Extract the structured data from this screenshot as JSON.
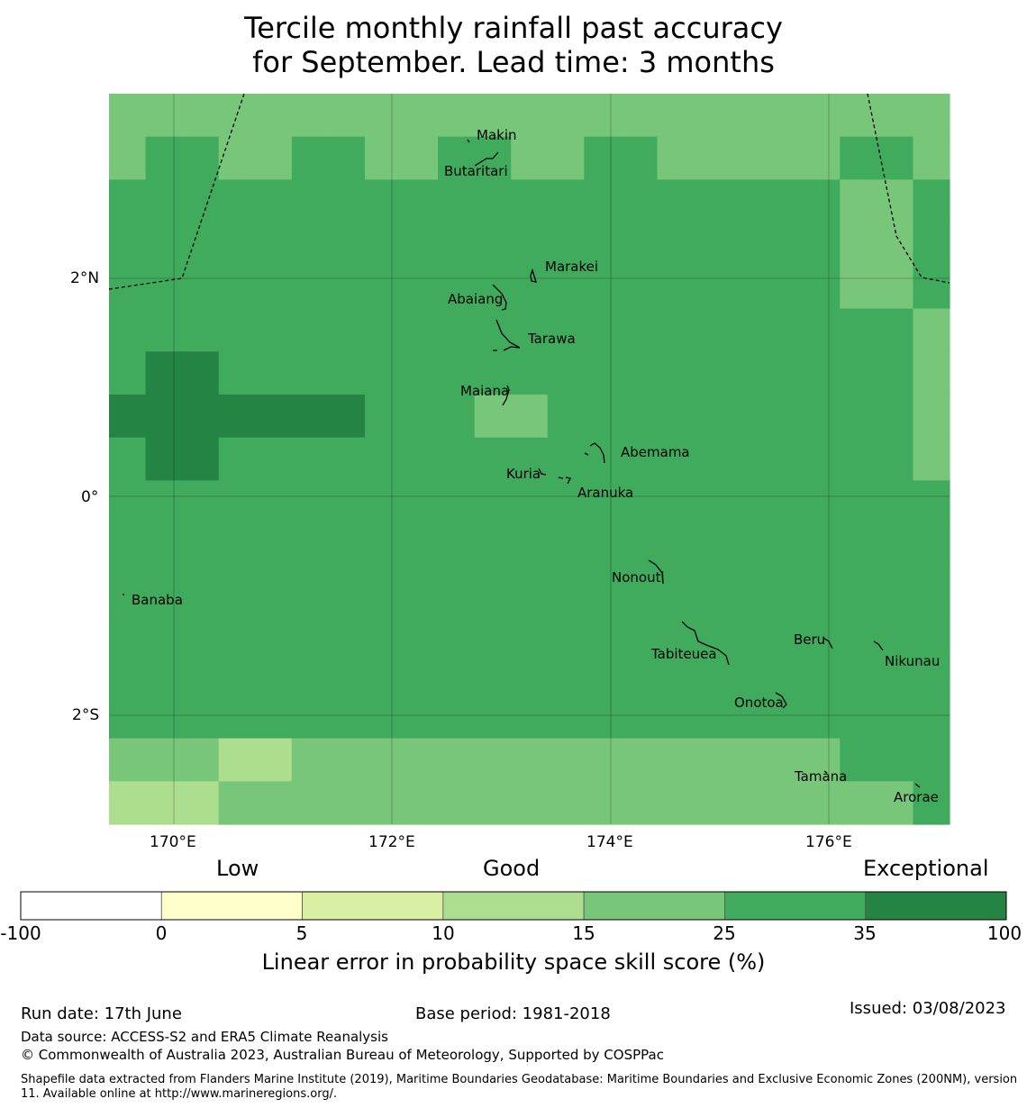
{
  "title_line1": "Tercile monthly rainfall past accuracy",
  "title_line2": "for September. Lead time: 3 months",
  "map": {
    "lon_ticks": [
      "170°E",
      "172°E",
      "174°E",
      "176°E"
    ],
    "lat_ticks": [
      "2°N",
      "0°",
      "2°S"
    ],
    "islands": {
      "makin": "Makin",
      "butaritari": "Butaritari",
      "marakei": "Marakei",
      "abaiang": "Abaiang",
      "tarawa": "Tarawa",
      "maiana": "Maiana",
      "abemama": "Abemama",
      "kuria": "Kuria",
      "aranuka": "Aranuka",
      "nonouti": "Nonouti",
      "banaba": "Banaba",
      "beru": "Beru",
      "tabiteuea": "Tabiteuea",
      "nikunau": "Nikunau",
      "onotoa": "Onotoa",
      "tamana": "Tamana",
      "arorae": "Arorae"
    },
    "class_colors": [
      "#ffffff",
      "#ffffcc",
      "#d9f0a3",
      "#addd8e",
      "#78c679",
      "#41ab5d",
      "#238443"
    ],
    "grid_classes": [
      [
        4,
        4,
        4,
        4,
        4,
        4,
        4,
        4,
        4,
        4,
        4,
        4,
        4,
        4,
        4,
        4,
        4,
        4,
        4,
        4,
        4,
        4,
        4
      ],
      [
        4,
        5,
        5,
        4,
        4,
        5,
        5,
        4,
        4,
        5,
        5,
        4,
        4,
        5,
        5,
        4,
        4,
        4,
        4,
        4,
        5,
        5,
        4
      ],
      [
        5,
        5,
        5,
        5,
        5,
        5,
        5,
        5,
        5,
        5,
        5,
        5,
        5,
        5,
        5,
        5,
        5,
        5,
        5,
        5,
        4,
        4,
        5
      ],
      [
        5,
        5,
        5,
        5,
        5,
        5,
        5,
        5,
        5,
        5,
        5,
        5,
        5,
        5,
        5,
        5,
        5,
        5,
        5,
        5,
        4,
        4,
        5
      ],
      [
        5,
        5,
        5,
        5,
        5,
        5,
        5,
        5,
        5,
        5,
        5,
        5,
        5,
        5,
        5,
        5,
        5,
        5,
        5,
        5,
        4,
        4,
        5
      ],
      [
        5,
        5,
        5,
        5,
        5,
        5,
        5,
        5,
        5,
        5,
        5,
        5,
        5,
        5,
        5,
        5,
        5,
        5,
        5,
        5,
        5,
        5,
        4
      ],
      [
        5,
        6,
        6,
        5,
        5,
        5,
        5,
        5,
        5,
        5,
        5,
        5,
        5,
        5,
        5,
        5,
        5,
        5,
        5,
        5,
        5,
        5,
        4
      ],
      [
        6,
        6,
        6,
        6,
        6,
        6,
        6,
        5,
        5,
        5,
        4,
        4,
        5,
        5,
        5,
        5,
        5,
        5,
        5,
        5,
        5,
        5,
        4
      ],
      [
        5,
        6,
        6,
        5,
        5,
        5,
        5,
        5,
        5,
        5,
        5,
        5,
        5,
        5,
        5,
        5,
        5,
        5,
        5,
        5,
        5,
        5,
        4
      ],
      [
        5,
        5,
        5,
        5,
        5,
        5,
        5,
        5,
        5,
        5,
        5,
        5,
        5,
        5,
        5,
        5,
        5,
        5,
        5,
        5,
        5,
        5,
        5
      ],
      [
        5,
        5,
        5,
        5,
        5,
        5,
        5,
        5,
        5,
        5,
        5,
        5,
        5,
        5,
        5,
        5,
        5,
        5,
        5,
        5,
        5,
        5,
        5
      ],
      [
        5,
        5,
        5,
        5,
        5,
        5,
        5,
        5,
        5,
        5,
        5,
        5,
        5,
        5,
        5,
        5,
        5,
        5,
        5,
        5,
        5,
        5,
        5
      ],
      [
        5,
        5,
        5,
        5,
        5,
        5,
        5,
        5,
        5,
        5,
        5,
        5,
        5,
        5,
        5,
        5,
        5,
        5,
        5,
        5,
        5,
        5,
        5
      ],
      [
        5,
        5,
        5,
        5,
        5,
        5,
        5,
        5,
        5,
        5,
        5,
        5,
        5,
        5,
        5,
        5,
        5,
        5,
        5,
        5,
        5,
        5,
        5
      ],
      [
        5,
        5,
        5,
        5,
        5,
        5,
        5,
        5,
        5,
        5,
        5,
        5,
        5,
        5,
        5,
        5,
        5,
        5,
        5,
        5,
        5,
        5,
        5
      ],
      [
        4,
        4,
        4,
        3,
        3,
        4,
        4,
        4,
        4,
        4,
        4,
        4,
        4,
        4,
        4,
        4,
        4,
        4,
        4,
        4,
        5,
        5,
        5
      ],
      [
        3,
        3,
        3,
        4,
        4,
        4,
        4,
        4,
        4,
        4,
        4,
        4,
        4,
        4,
        4,
        4,
        4,
        4,
        4,
        4,
        4,
        4,
        5
      ]
    ]
  },
  "colorbar": {
    "category_low": "Low",
    "category_good": "Good",
    "category_exceptional": "Exceptional",
    "boundaries": [
      "-100",
      "0",
      "5",
      "10",
      "15",
      "25",
      "35",
      "100"
    ],
    "colors": [
      "#ffffff",
      "#ffffcc",
      "#d9f0a3",
      "#addd8e",
      "#78c679",
      "#41ab5d",
      "#238443"
    ],
    "label": "Linear error in probability space skill score (%)"
  },
  "footer": {
    "run_date": "Run date: 17th June",
    "base_period": "Base period: 1981-2018",
    "issued": "Issued: 03/08/2023",
    "data_source": "Data source: ACCESS-S2 and ERA5 Climate Reanalysis",
    "copyright": "© Commonwealth of Australia 2023, Australian Bureau of Meteorology, Supported by COSPPac",
    "shapefile_note": "Shapefile data extracted from Flanders Marine Institute (2019), Maritime Boundaries Geodatabase: Maritime Boundaries and Exclusive Economic Zones (200NM), version 11. Available online at http://www.marineregions.org/."
  }
}
